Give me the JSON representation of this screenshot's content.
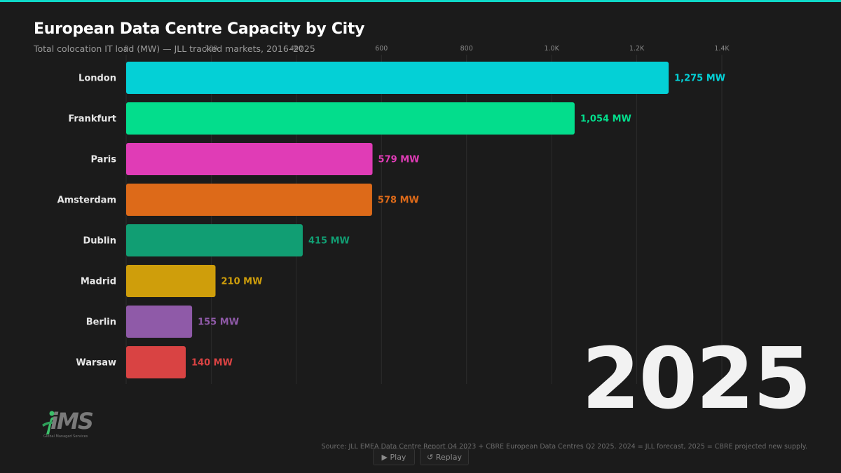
{
  "title": "European Data Centre Capacity by City",
  "subtitle": "Total colocation IT load (MW) — JLL tracked markets, 2016–2025",
  "year": "2025",
  "source": "Source: JLL EMEA Data Centre Report Q4 2023 + CBRE European Data Centres Q2 2025. 2024 = JLL forecast, 2025 = CBRE projected new supply.",
  "controls": {
    "play_label": "▶ Play",
    "replay_label": "↺ Replay"
  },
  "logo": {
    "text": "iMS",
    "tagline": "Global Managed Services"
  },
  "colors": {
    "accent": "#0fd9c8",
    "background": "#1b1b1b"
  },
  "chart_data": {
    "type": "bar",
    "orientation": "horizontal",
    "categories": [
      "London",
      "Frankfurt",
      "Paris",
      "Amsterdam",
      "Dublin",
      "Madrid",
      "Berlin",
      "Warsaw"
    ],
    "values": [
      1275,
      1054,
      579,
      578,
      415,
      210,
      155,
      140
    ],
    "value_labels": [
      "1,275 MW",
      "1,054 MW",
      "579 MW",
      "578 MW",
      "415 MW",
      "210 MW",
      "155 MW",
      "140 MW"
    ],
    "colors": [
      "#04d0d6",
      "#03dd8c",
      "#e03cb6",
      "#dd6a19",
      "#119e73",
      "#cf9e0b",
      "#8f5aa8",
      "#d94343"
    ],
    "xlim": [
      0,
      1400
    ],
    "x_ticks": [
      0,
      200,
      400,
      600,
      800,
      1000,
      1200,
      1400
    ],
    "x_tick_labels": [
      "0",
      "200",
      "400",
      "600",
      "800",
      "1.0K",
      "1.2K",
      "1.4K"
    ],
    "grid": true
  }
}
